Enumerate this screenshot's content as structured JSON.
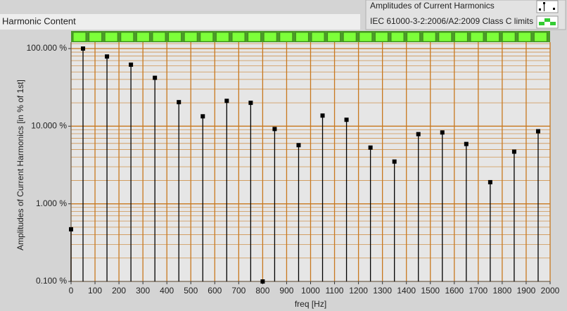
{
  "title": "Harmonic Content",
  "chart_data": {
    "type": "stem",
    "xlabel": "freq [Hz]",
    "ylabel": "Amplitudes of Current Harmonics [in % of 1st]",
    "x": [
      0,
      50,
      150,
      250,
      350,
      450,
      550,
      650,
      750,
      800,
      850,
      950,
      1050,
      1150,
      1250,
      1350,
      1450,
      1550,
      1650,
      1750,
      1850,
      1950
    ],
    "series": [
      {
        "name": "Amplitudes of Current Harmonics",
        "color": "#000000",
        "values": [
          0.47,
          100,
          79,
          62,
          42,
          20.4,
          13.4,
          21.2,
          20,
          0.1,
          9.2,
          5.7,
          13.7,
          12.1,
          5.3,
          3.5,
          7.9,
          8.3,
          5.9,
          1.9,
          4.7,
          8.6
        ]
      },
      {
        "name": "IEC 61000-3-2:2006/A2:2009 Class C limits",
        "color": "#33cc33",
        "values": [
          null,
          null,
          null,
          null,
          null,
          null,
          null,
          null,
          null,
          null,
          null,
          null,
          null,
          null,
          null,
          null,
          null,
          null,
          null,
          null,
          null,
          null
        ]
      }
    ],
    "xlim": [
      0,
      2000
    ],
    "xticks": [
      0,
      100,
      200,
      300,
      400,
      500,
      600,
      700,
      800,
      900,
      1000,
      1100,
      1200,
      1300,
      1400,
      1500,
      1600,
      1700,
      1800,
      1900,
      2000
    ],
    "ylim": [
      0.1,
      100
    ],
    "yticks": [
      {
        "value": 0.1,
        "label": "0.100 %"
      },
      {
        "value": 1,
        "label": "1.000 %"
      },
      {
        "value": 10,
        "label": "10.000 %"
      },
      {
        "value": 100,
        "label": "100.000 %"
      }
    ],
    "log_y": true,
    "grid": true,
    "grid_color": "#c8781e"
  }
}
